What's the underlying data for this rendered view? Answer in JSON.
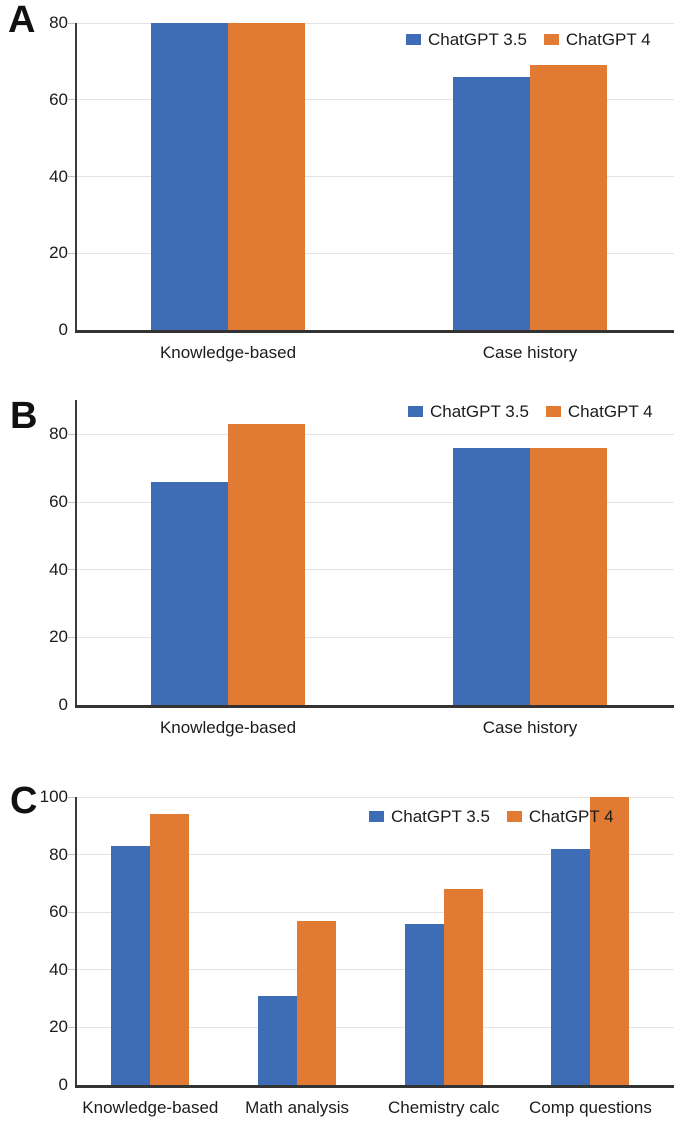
{
  "figure": {
    "description": "Three-panel grouped bar chart comparing ChatGPT 3.5 and ChatGPT 4 scores"
  },
  "legend": {
    "series_1": "ChatGPT 3.5",
    "series_2": "ChatGPT 4"
  },
  "colors": {
    "chatgpt_35": "#3E6CB5",
    "chatgpt_4": "#E17A33",
    "gridline": "#E4E4E4",
    "axis": "#3A3A3A",
    "text": "#1B1B1B"
  },
  "chart_data": [
    {
      "panel": "A",
      "type": "bar",
      "categories": [
        "Knowledge-based",
        "Case history"
      ],
      "series": [
        {
          "name": "ChatGPT 3.5",
          "values": [
            80,
            66
          ]
        },
        {
          "name": "ChatGPT 4",
          "values": [
            80,
            69
          ]
        }
      ],
      "yticks": [
        0,
        20,
        40,
        60,
        80
      ],
      "ylim": [
        0,
        80
      ],
      "grid": true,
      "legend_position": "top-right"
    },
    {
      "panel": "B",
      "type": "bar",
      "categories": [
        "Knowledge-based",
        "Case history"
      ],
      "series": [
        {
          "name": "ChatGPT 3.5",
          "values": [
            66,
            76
          ]
        },
        {
          "name": "ChatGPT 4",
          "values": [
            83,
            76
          ]
        }
      ],
      "yticks": [
        0,
        20,
        40,
        60,
        80
      ],
      "ylim": [
        0,
        90
      ],
      "grid": true,
      "legend_position": "top-right"
    },
    {
      "panel": "C",
      "type": "bar",
      "categories": [
        "Knowledge-based",
        "Math analysis",
        "Chemistry calc",
        "Comp questions"
      ],
      "series": [
        {
          "name": "ChatGPT 3.5",
          "values": [
            83,
            31,
            56,
            82
          ]
        },
        {
          "name": "ChatGPT 4",
          "values": [
            94,
            57,
            68,
            100
          ]
        }
      ],
      "yticks": [
        0,
        20,
        40,
        60,
        80,
        100
      ],
      "ylim": [
        0,
        100
      ],
      "grid": true,
      "legend_position": "top-right"
    }
  ]
}
